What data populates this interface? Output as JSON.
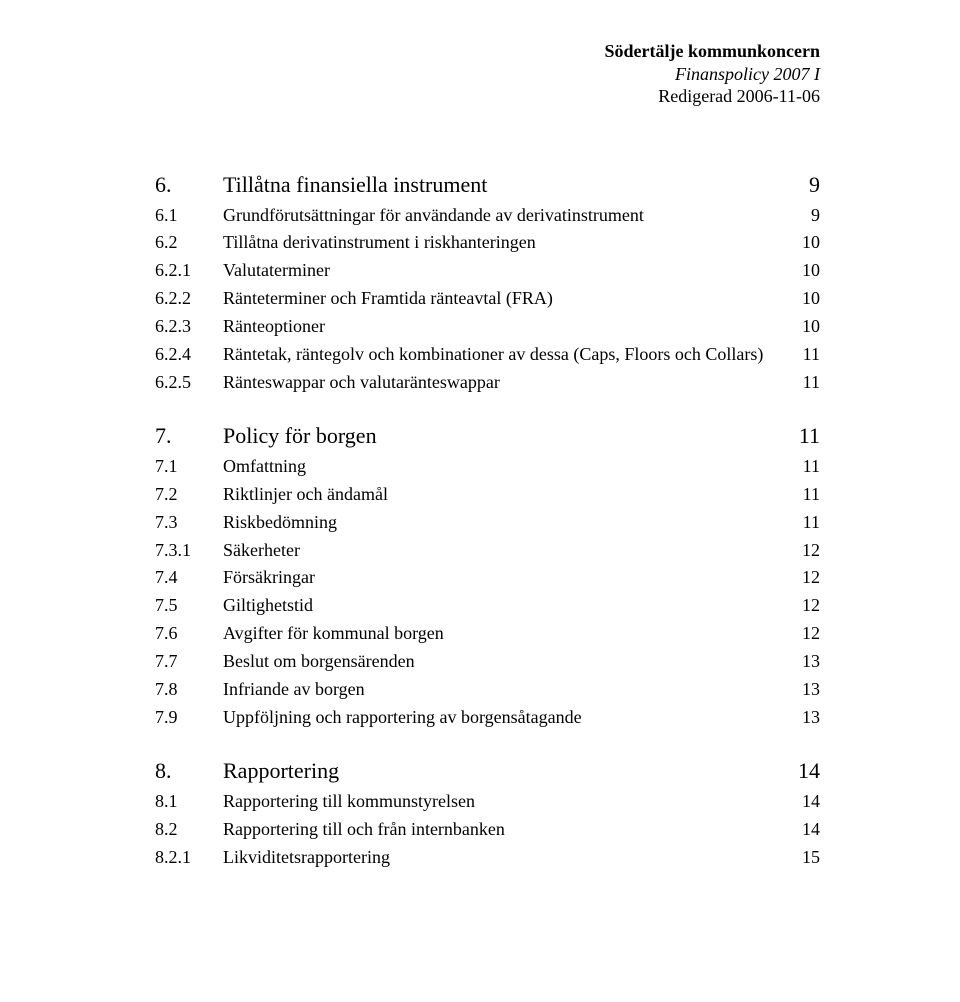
{
  "header": {
    "line1": "Södertälje kommunkoncern",
    "line2": "Finanspolicy 2007 I",
    "line3": "Redigerad 2006-11-06"
  },
  "toc": [
    {
      "type": "head",
      "num": "6.",
      "title": "Tillåtna finansiella instrument",
      "page": "9"
    },
    {
      "type": "item",
      "num": "6.1",
      "title": "Grundförutsättningar för användande av derivatinstrument",
      "page": "9"
    },
    {
      "type": "item",
      "num": "6.2",
      "title": "Tillåtna derivatinstrument i riskhanteringen",
      "page": "10"
    },
    {
      "type": "item",
      "num": "6.2.1",
      "title": "Valutaterminer",
      "page": "10"
    },
    {
      "type": "item",
      "num": "6.2.2",
      "title": "Ränteterminer och Framtida ränteavtal (FRA)",
      "page": "10"
    },
    {
      "type": "item",
      "num": "6.2.3",
      "title": "Ränteoptioner",
      "page": "10"
    },
    {
      "type": "item",
      "num": "6.2.4",
      "title": "Räntetak, räntegolv och kombinationer av dessa (Caps, Floors och Collars)",
      "page": "11"
    },
    {
      "type": "item",
      "num": "6.2.5",
      "title": "Ränteswappar och valutaränteswappar",
      "page": "11"
    },
    {
      "type": "gap"
    },
    {
      "type": "head",
      "num": "7.",
      "title": "Policy för borgen",
      "page": "11"
    },
    {
      "type": "item",
      "num": "7.1",
      "title": "Omfattning",
      "page": "11"
    },
    {
      "type": "item",
      "num": "7.2",
      "title": "Riktlinjer och ändamål",
      "page": "11"
    },
    {
      "type": "item",
      "num": "7.3",
      "title": "Riskbedömning",
      "page": "11"
    },
    {
      "type": "item",
      "num": "7.3.1",
      "title": "Säkerheter",
      "page": "12"
    },
    {
      "type": "item",
      "num": "7.4",
      "title": "Försäkringar",
      "page": "12"
    },
    {
      "type": "item",
      "num": "7.5",
      "title": "Giltighetstid",
      "page": "12"
    },
    {
      "type": "item",
      "num": "7.6",
      "title": "Avgifter för kommunal borgen",
      "page": "12"
    },
    {
      "type": "item",
      "num": "7.7",
      "title": "Beslut om borgensärenden",
      "page": "13"
    },
    {
      "type": "item",
      "num": "7.8",
      "title": "Infriande av borgen",
      "page": "13"
    },
    {
      "type": "item",
      "num": "7.9",
      "title": "Uppföljning och rapportering av borgensåtagande",
      "page": "13"
    },
    {
      "type": "gap"
    },
    {
      "type": "head",
      "num": "8.",
      "title": "Rapportering",
      "page": "14"
    },
    {
      "type": "item",
      "num": "8.1",
      "title": "Rapportering till kommunstyrelsen",
      "page": "14"
    },
    {
      "type": "item",
      "num": "8.2",
      "title": "Rapportering till och från internbanken",
      "page": "14"
    },
    {
      "type": "item",
      "num": "8.2.1",
      "title": "Likviditetsrapportering",
      "page": "15"
    }
  ]
}
